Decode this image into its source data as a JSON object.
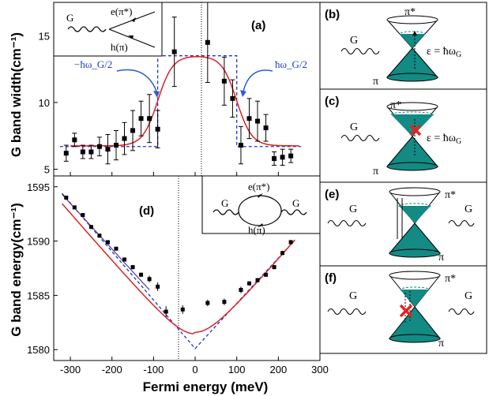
{
  "chart_data": [
    {
      "type": "scatter",
      "panel": "(a)",
      "ylabel": "G band width(cm⁻¹)",
      "xlim": [
        -340,
        300
      ],
      "ylim": [
        4.5,
        17.5
      ],
      "yticks": [
        5,
        10,
        15
      ],
      "x": [
        -310,
        -290,
        -270,
        -250,
        -230,
        -210,
        -190,
        -170,
        -150,
        -130,
        -110,
        -90,
        -50,
        30,
        70,
        90,
        110,
        130,
        150,
        170,
        190,
        210,
        230
      ],
      "y": [
        6.2,
        7.2,
        6.3,
        6.3,
        6.7,
        6.5,
        6.8,
        7.3,
        7.9,
        8.8,
        8.8,
        8.0,
        13.8,
        14.5,
        11.6,
        10.3,
        6.8,
        8.8,
        8.6,
        8.1,
        5.8,
        5.9,
        6.0
      ],
      "err": [
        0.6,
        0.5,
        0.5,
        0.5,
        0.7,
        1.1,
        1.1,
        1.2,
        1.5,
        1.3,
        1.8,
        1.4,
        2.6,
        3.0,
        1.8,
        1.4,
        1.4,
        1.5,
        1.5,
        1.0,
        0.5,
        0.6,
        0.5
      ],
      "step": {
        "low": 6.7,
        "high": 13.5,
        "edges": [
          -90,
          100
        ]
      },
      "center_line": 15,
      "annotations": {
        "left": "−ħω_G/2",
        "right": "ħω_G/2"
      },
      "inset": {
        "g": "G",
        "upper": "e(π*)",
        "lower": "h(π)"
      }
    },
    {
      "type": "scatter",
      "panel": "(d)",
      "ylabel": "G band energy(cm⁻¹)",
      "xlabel": "Fermi energy (meV)",
      "xlim": [
        -340,
        300
      ],
      "ylim": [
        1579,
        1596
      ],
      "yticks": [
        1580,
        1585,
        1590,
        1595
      ],
      "xticks": [
        -300,
        -200,
        -100,
        0,
        100,
        200,
        300
      ],
      "x": [
        -310,
        -290,
        -270,
        -250,
        -230,
        -210,
        -190,
        -170,
        -150,
        -130,
        -110,
        -90,
        -70,
        -30,
        30,
        70,
        110,
        130,
        150,
        170,
        190,
        210,
        230
      ],
      "y": [
        1594.0,
        1593.1,
        1592.4,
        1591.3,
        1590.5,
        1589.9,
        1589.3,
        1588.3,
        1587.6,
        1586.9,
        1586.5,
        1585.8,
        1583.5,
        1583.7,
        1584.3,
        1584.4,
        1585.5,
        1586.1,
        1586.4,
        1586.9,
        1587.6,
        1588.9,
        1589.9
      ],
      "err": [
        0.15,
        0.15,
        0.15,
        0.15,
        0.15,
        0.15,
        0.15,
        0.15,
        0.2,
        0.2,
        0.3,
        0.4,
        0.5,
        0.4,
        0.3,
        0.3,
        0.3,
        0.2,
        0.2,
        0.2,
        0.2,
        0.2,
        0.2
      ],
      "dotted_line": -40,
      "inset": {
        "g_left": "G",
        "g_right": "G",
        "upper": "e(π*)",
        "lower": "h(π)"
      }
    }
  ],
  "diagrams": [
    {
      "label": "(b)",
      "g": "G",
      "top": "π*",
      "bottom": "π",
      "eq": "ε = ħω",
      "eq_sub": "G"
    },
    {
      "label": "(c)",
      "g": "G",
      "top": "π*",
      "bottom": "π",
      "eq": "ε = ħω",
      "eq_sub": "G"
    },
    {
      "label": "(e)",
      "g_left": "G",
      "g_right": "G",
      "top": "π*",
      "bottom": "π"
    },
    {
      "label": "(f)",
      "g_left": "G",
      "g_right": "G",
      "top": "π*",
      "bottom": "π"
    }
  ],
  "colors": {
    "cone": "#138a84",
    "fit": "#dd2222",
    "dash": "#2233cc",
    "cross": "#e82222",
    "arrow": "#2a5bd7"
  }
}
